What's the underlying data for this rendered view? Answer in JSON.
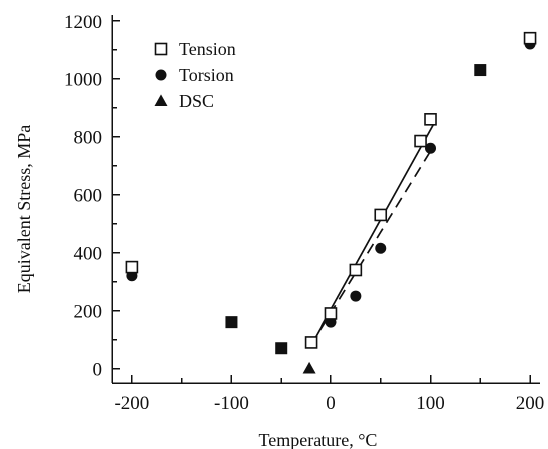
{
  "chart_data": {
    "type": "scatter",
    "title": "",
    "xlabel": "Temperature, °C",
    "ylabel": "Equivalent Stress, MPa",
    "xlim": [
      -220,
      210
    ],
    "ylim": [
      -50,
      1220
    ],
    "xticks": [
      -200,
      -100,
      0,
      100,
      200
    ],
    "yticks": [
      0,
      200,
      400,
      600,
      800,
      1000,
      1200
    ],
    "legend_position": "top-left",
    "grid": false,
    "series": [
      {
        "name": "Tension",
        "marker": "open-square",
        "color": "#111111",
        "points": [
          {
            "x": -200,
            "y": 350
          },
          {
            "x": -20,
            "y": 90
          },
          {
            "x": 0,
            "y": 190
          },
          {
            "x": 25,
            "y": 340
          },
          {
            "x": 50,
            "y": 530
          },
          {
            "x": 90,
            "y": 785
          },
          {
            "x": 100,
            "y": 860
          },
          {
            "x": 200,
            "y": 1140
          }
        ]
      },
      {
        "name": "Torsion",
        "marker": "filled-circle",
        "color": "#111111",
        "points": [
          {
            "x": -200,
            "y": 320
          },
          {
            "x": 0,
            "y": 160
          },
          {
            "x": 25,
            "y": 250
          },
          {
            "x": 50,
            "y": 415
          },
          {
            "x": 100,
            "y": 760
          },
          {
            "x": 200,
            "y": 1120
          }
        ]
      },
      {
        "name": "DSC",
        "marker": "filled-triangle",
        "color": "#111111",
        "points": [
          {
            "x": -22,
            "y": 0
          }
        ]
      },
      {
        "name": "",
        "marker": "filled-square",
        "color": "#111111",
        "points": [
          {
            "x": -100,
            "y": 160
          },
          {
            "x": -50,
            "y": 70
          },
          {
            "x": 150,
            "y": 1030
          }
        ]
      }
    ],
    "fit_lines": [
      {
        "style": "solid",
        "from": {
          "x": -20,
          "y": 80
        },
        "to": {
          "x": 105,
          "y": 855
        }
      },
      {
        "style": "dashed",
        "from": {
          "x": -20,
          "y": 80
        },
        "to": {
          "x": 100,
          "y": 750
        }
      }
    ]
  }
}
